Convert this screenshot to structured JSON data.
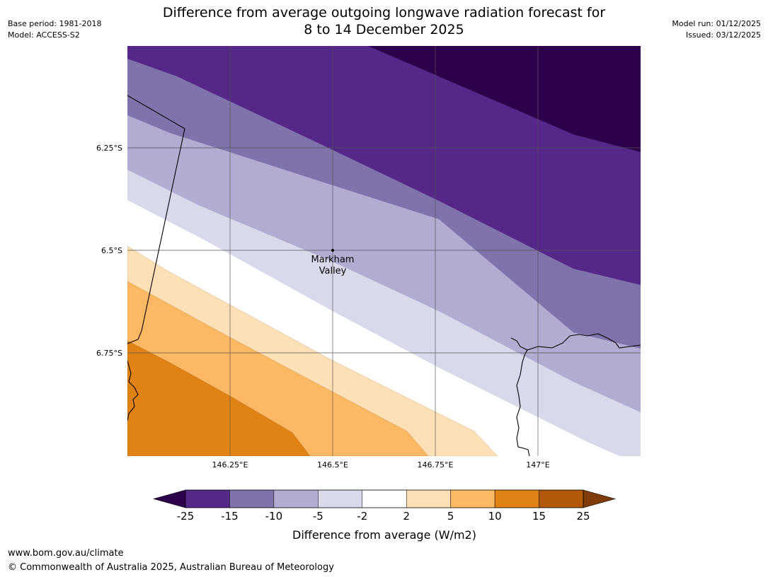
{
  "header": {
    "title_line1": "Difference from average outgoing longwave radiation forecast for",
    "title_line2": "8 to 14 December 2025",
    "base_period": "Base period: 1981-2018",
    "model": "Model: ACCESS-S2",
    "model_run": "Model run: 01/12/2025",
    "issued": "Issued: 03/12/2025"
  },
  "map": {
    "lat_labels": [
      "6.25°S",
      "6.5°S",
      "6.75°S"
    ],
    "lon_labels": [
      "146.25°E",
      "146.5°E",
      "146.75°E",
      "147°E"
    ],
    "place": {
      "name_line1": "Markham",
      "name_line2": "Valley"
    },
    "colors": {
      "c_m25": "#2d004b",
      "c_m15": "#542788",
      "c_m10": "#8073ac",
      "c_m5": "#b2abd2",
      "c_m2": "#d8daeb",
      "c_0": "#ffffff",
      "c_p2": "#fee0b6",
      "c_p5": "#fdb863",
      "c_p10": "#e08214",
      "c_p15": "#b35806",
      "c_p25": "#7f3b08"
    }
  },
  "colorbar": {
    "ticks": [
      "-25",
      "-15",
      "-10",
      "-5",
      "-2",
      "2",
      "5",
      "10",
      "15",
      "25"
    ],
    "label": "Difference from average (W/m2)",
    "colors": [
      "#542788",
      "#8073ac",
      "#b2abd2",
      "#d8daeb",
      "#ffffff",
      "#fee0b6",
      "#fdb863",
      "#e08214",
      "#b35806"
    ],
    "extend_low_color": "#2d004b",
    "extend_high_color": "#7f3b08"
  },
  "footer": {
    "url": "www.bom.gov.au/climate",
    "copyright": "© Commonwealth of Australia 2025, Australian Bureau of Meteorology"
  }
}
